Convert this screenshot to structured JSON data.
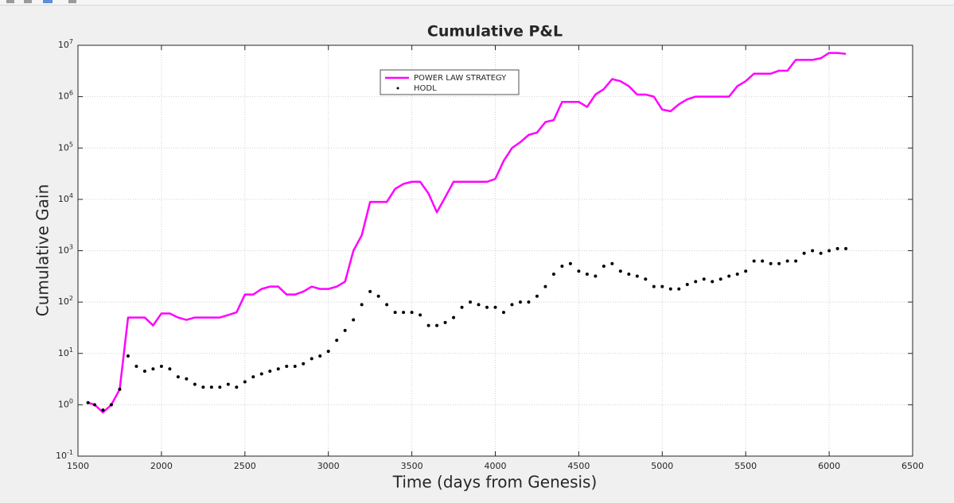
{
  "chart_data": {
    "type": "line",
    "title": "Cumulative P&L",
    "xlabel": "Time (days from Genesis)",
    "ylabel": "Cumulative Gain",
    "yscale": "log",
    "grid": true,
    "legend": "upper-center",
    "xlim": [
      1500,
      6500
    ],
    "xticks": [
      1500,
      2000,
      2500,
      3000,
      3500,
      4000,
      4500,
      5000,
      5500,
      6000,
      6500
    ],
    "ylim": [
      0.1,
      10000000
    ],
    "yticks": [
      {
        "value": 0.1,
        "label": "10^-1"
      },
      {
        "value": 1,
        "label": "10^0"
      },
      {
        "value": 10,
        "label": "10^1"
      },
      {
        "value": 100,
        "label": "10^2"
      },
      {
        "value": 1000,
        "label": "10^3"
      },
      {
        "value": 10000,
        "label": "10^4"
      },
      {
        "value": 100000,
        "label": "10^5"
      },
      {
        "value": 1000000,
        "label": "10^6"
      },
      {
        "value": 10000000,
        "label": "10^7"
      }
    ],
    "x": [
      1560,
      1600,
      1650,
      1700,
      1750,
      1800,
      1850,
      1900,
      1950,
      2000,
      2050,
      2100,
      2150,
      2200,
      2250,
      2300,
      2350,
      2400,
      2450,
      2500,
      2550,
      2600,
      2650,
      2700,
      2750,
      2800,
      2850,
      2900,
      2950,
      3000,
      3050,
      3100,
      3150,
      3200,
      3250,
      3300,
      3350,
      3400,
      3450,
      3500,
      3550,
      3600,
      3650,
      3700,
      3750,
      3800,
      3850,
      3900,
      3950,
      4000,
      4050,
      4100,
      4150,
      4200,
      4250,
      4300,
      4350,
      4400,
      4450,
      4500,
      4550,
      4600,
      4650,
      4700,
      4750,
      4800,
      4850,
      4900,
      4950,
      5000,
      5050,
      5100,
      5150,
      5200,
      5250,
      5300,
      5350,
      5400,
      5450,
      5500,
      5550,
      5600,
      5650,
      5700,
      5750,
      5800,
      5850,
      5900,
      5950,
      6000,
      6050,
      6100
    ],
    "series": [
      {
        "name": "POWER LAW STRATEGY",
        "color": "#ff00ff",
        "style": "line",
        "values": [
          1.1,
          1,
          0.71,
          1,
          2,
          50,
          50,
          50,
          35,
          60,
          60,
          50,
          45,
          50,
          50,
          50,
          50,
          56,
          63,
          140,
          140,
          180,
          200,
          200,
          140,
          140,
          160,
          200,
          180,
          180,
          200,
          250,
          1000,
          2000,
          8900,
          8900,
          8900,
          16000,
          20000,
          22000,
          22000,
          13000,
          5600,
          11000,
          22000,
          22000,
          22000,
          22000,
          22000,
          25000,
          56000,
          100000,
          130000,
          180000,
          200000,
          320000,
          350000,
          790000,
          790000,
          790000,
          630000,
          1100000,
          1400000,
          2200000,
          2000000,
          1600000,
          1100000,
          1100000,
          1000000,
          560000,
          520000,
          710000,
          890000,
          1000000,
          1000000,
          1000000,
          1000000,
          1000000,
          1600000,
          2000000,
          2800000,
          2800000,
          2800000,
          3200000,
          3200000,
          5200000,
          5200000,
          5200000,
          5600000,
          7100000,
          7100000,
          6800000
        ]
      },
      {
        "name": "HODL",
        "color": "#000000",
        "style": "dots",
        "values": [
          1.1,
          1,
          0.79,
          1,
          2,
          8.9,
          5.6,
          4.5,
          5,
          5.6,
          5,
          3.5,
          3.2,
          2.5,
          2.2,
          2.2,
          2.2,
          2.5,
          2.2,
          2.8,
          3.5,
          4,
          4.5,
          5,
          5.6,
          5.6,
          6.3,
          7.9,
          8.9,
          11,
          18,
          28,
          45,
          89,
          160,
          130,
          89,
          63,
          63,
          63,
          56,
          35,
          35,
          40,
          50,
          79,
          100,
          89,
          79,
          79,
          63,
          89,
          100,
          100,
          130,
          200,
          350,
          500,
          560,
          400,
          350,
          320,
          500,
          560,
          400,
          350,
          320,
          280,
          200,
          200,
          180,
          180,
          220,
          250,
          280,
          250,
          280,
          320,
          350,
          400,
          630,
          630,
          560,
          560,
          630,
          630,
          890,
          1000,
          890,
          1000,
          1100,
          1100
        ]
      }
    ]
  }
}
